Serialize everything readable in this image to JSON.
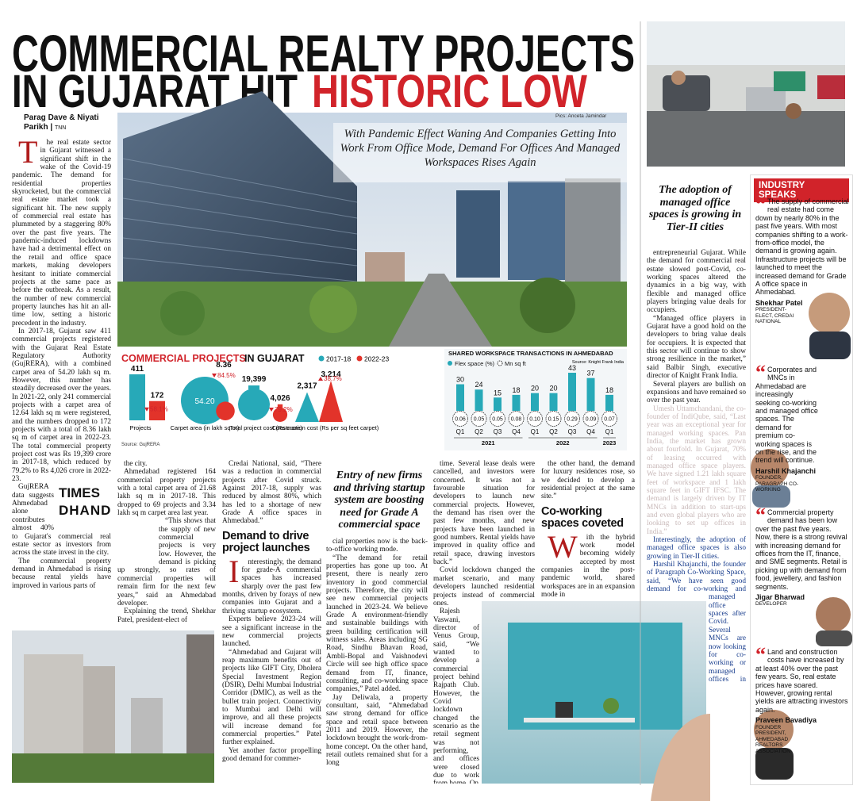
{
  "headline": {
    "line1": "COMMERCIAL REALTY PROJECTS",
    "line2": "IN GUJARAT HIT",
    "highlight": "HISTORIC LOW"
  },
  "byline": {
    "authors": "Parag Dave & Niyati Parikh",
    "agency": "TNN"
  },
  "photo_credit": "Pics: Anceta Jamindar",
  "photo_caption": "With Pandemic Effect Waning And Companies Getting Into Work From Office Mode, Demand For Offices And Managed Workspaces Rises Again",
  "logo": {
    "top": "TIMES",
    "bottom": "DHANDHO"
  },
  "pull_quotes": [
    "Entry of new firms and thriving startup system are boosting need for Grade A commercial space",
    "The adoption of managed office spaces is growing in Tier-II cities"
  ],
  "columns": [
    [
      {
        "p": "The real estate sector in Gujarat witnessed a significant shift in the wake of the Covid-19 pandemic. The demand for residential properties skyrocketed, but the commercial real estate market took a significant hit. The new supply of commercial real estate has plummeted by a staggering 80% over the past five years. The pandemic-induced lockdowns have had a detrimental effect on the retail and office space markets, making developers hesitant to initiate commercial projects at the same pace as before the outbreak. As a result, the number of new commercial property launches has hit an all-time low, setting a historic precedent in the industry."
      },
      {
        "p": "In 2017-18, Gujarat saw 411 commercial projects registered with the Gujarat Real Estate Regulatory Authority (GujRERA), with a combined carpet area of 54.20 lakh sq m. However, this number has steadily decreased over the years. In 2021-22, only 241 commercial projects with a carpet area of 12.64 lakh sq m were registered, and the numbers dropped to 172 projects with a total of 8.36 lakh sq m of carpet area in 2022-23. The total commercial property project cost was Rs 19,399 crore in 2017-18, which reduced by 79.2% to Rs 4,026 crore in 2022-23."
      },
      {
        "p": "GujRERA data suggests Ahmedabad alone contributes almost 40% to Gujarat's commercial real estate sector as investors from across the state invest in the city."
      },
      {
        "p": "The commercial property demand in Ahmedabad is rising because rental yields have improved in various parts of"
      }
    ],
    [
      {
        "p": "the city."
      },
      {
        "p": "Ahmedabad registered 164 commercial property projects with a total carpet area of 21.68 lakh sq m in 2017-18. This dropped to 69 projects and 3.34 lakh sq m carpet area last year."
      },
      {
        "p": "“This shows that the supply of new commercial projects is very low. However, the demand is picking up strongly, so rates of commercial properties will remain firm for the next few years,” said an Ahmedabad developer."
      },
      {
        "p": "Explaining the trend, Shekhar Patel, president-elect of"
      }
    ],
    [
      {
        "p": "Credai National, said, “There was a reduction in commercial projects after Covid struck. Against 2017-18, supply was reduced by almost 80%, which has led to a shortage of new Grade A office spaces in Ahmedabad.”"
      },
      {
        "h": "Demand to drive project launches"
      },
      {
        "p": "Interestingly, the demand for grade-A commercial spaces has increased sharply over the past few months, driven by forays of new companies into Gujarat and a thriving startup ecosystem."
      },
      {
        "p": "Experts believe 2023-24 will see a significant increase in the new commercial projects launched."
      },
      {
        "p": "“Ahmedabad and Gujarat will reap maximum benefits out of projects like GIFT City, Dholera Special Investment Region (DSIR), Delhi Mumbai Industrial Corridor (DMIC), as well as the bullet train project. Connectivity to Mumbai and Delhi will improve, and all these projects will increase demand for commercial properties.” Patel further explained."
      },
      {
        "p": "Yet another factor propelling good demand for commer-"
      }
    ],
    [
      {
        "p": "cial properties now is the back-to-office working mode."
      },
      {
        "p": "“The demand for retail properties has gone up too. At present, there is nearly zero inventory in good commercial projects. Therefore, the city will see new commercial projects launched in 2023-24. We believe Grade A environment-friendly and sustainable buildings with green building certification will witness sales. Areas including SG Road, Sindhu Bhavan Road, Ambli-Bopal and Vaishnodevi Circle will see high office space demand from IT, finance, consulting, and co-working space companies,” Patel added."
      },
      {
        "p": "Jay Deliwala, a property consultant, said, “Ahmedabad saw strong demand for office space and retail space between 2011 and 2019. However, the lockdown brought the work-from-home concept. On the other hand, retail outlets remained shut for a long"
      }
    ],
    [
      {
        "p": "time. Several lease deals were cancelled, and investors were concerned. It was not a favourable situation for developers to launch new commercial projects. However, the demand has risen over the past few months, and new projects have been launched in good numbers. Rental yields have improved in quality office and retail space, drawing investors back.”"
      },
      {
        "p": "Covid lockdown changed the market scenario, and many developers launched residential projects instead of commercial ones."
      },
      {
        "p": "Rajesh Vaswani, director of Venus Group, said, “We wanted to develop a commercial project behind Rajpath Club. However, the Covid lockdown changed the scenario as the retail segment was not performing, and offices were closed due to work from home. On"
      }
    ],
    [
      {
        "p": "the other hand, the demand for luxury residences rose, so we decided to develop a residential project at the same site.”"
      },
      {
        "h": "Co-working spaces coveted"
      },
      {
        "p": "With the hybrid work model becoming widely accepted by most companies in the post-pandemic world, shared workspaces are in an expansion mode in"
      }
    ],
    [
      {
        "p": "entrepreneurial Gujarat. While the demand for commercial real estate slowed post-Covid, co-working spaces altered the dynamics in a big way, with flexible and managed office players bringing value deals for occupiers."
      },
      {
        "p": "“Managed office players in Gujarat have a good hold on the developers to bring value deals for occupiers. It is expected that this sector will continue to show strong resilience in the market,” said Balbir Singh, executive director of Knight Frank India."
      },
      {
        "p": "Several players are bullish on expansions and have remained so over the past year."
      },
      {
        "p": "Umesh Uttamchandani, the co-founder of IndiQube, said, “Last year was an exceptional year for managed working spaces. Pan India, the market has grown about fourfold. In Gujarat, 70% of leasing occurred with managed office space players. We have signed 1.21 lakh square feet of workspace and 1 lakh square feet in GIFT IFSC. The demand is largely driven by IT MNCs in addition to start-ups and even global players who are looking to set up offices in India.”",
        "faded": true
      },
      {
        "p": "Interestingly, the adoption of managed office spaces is also growing in Tier-II cities.",
        "accent": true
      },
      {
        "p": "Harshil Khajanchi, the founder of Paragraph Co-Working Space, said, “We have seen good demand for co-working and managed office spaces after Covid. Several MNCs are now looking for co-working or managed offices in Ahmedabad. We currently have a total of 60,000 sq feet of co-working and managed office space and have recently added another 20,000 sq feet in Nehrunagar.”",
        "accent": true
      }
    ]
  ],
  "projects_graphic": {
    "title": "COMMERCIAL PROJECTS",
    "title_suffix": "IN GUJARAT",
    "legend": [
      {
        "name": "2017-18",
        "color": "#27a9b8"
      },
      {
        "name": "2022-23",
        "color": "#e2332a"
      }
    ],
    "items": [
      {
        "label": "Projects",
        "values": [
          411,
          172
        ],
        "change": "58.1%",
        "direction": "down"
      },
      {
        "label": "Carpet area (in lakh sq m)",
        "values": [
          {
            "value": 54.2,
            "label": "54.20"
          },
          8.36
        ],
        "change": "84.5%",
        "direction": "down"
      },
      {
        "label": "Total project cost (Rs crore)",
        "values": [
          {
            "value": 19399,
            "label": "19,399"
          },
          {
            "value": 4026,
            "label": "4,026"
          }
        ],
        "change": "79.2%",
        "direction": "down"
      },
      {
        "label": "Construction cost (Rs per sq feet carpet)",
        "values": [
          {
            "value": 2317,
            "label": "2,317"
          },
          {
            "value": 3214,
            "label": "3,214"
          }
        ],
        "change": "38.7%",
        "direction": "up"
      }
    ],
    "source": "Source: GujRERA"
  },
  "workspace_graphic": {
    "title": "SHARED WORKSPACE TRANSACTIONS IN AHMEDABAD",
    "series": [
      {
        "name": "Flex space (%)",
        "color": "#27a9b8",
        "values": [
          30,
          24,
          15,
          18,
          20,
          20,
          43,
          37,
          18
        ]
      },
      {
        "name": "Mn sq ft",
        "values": [
          0.06,
          0.05,
          0.05,
          0.08,
          {
            "value": 0.1,
            "label": "0.10"
          },
          0.15,
          0.29,
          0.09,
          0.07
        ]
      }
    ],
    "categories": [
      "Q1",
      "Q2",
      "Q3",
      "Q4",
      "Q1",
      "Q2",
      "Q3",
      "Q4",
      "Q1"
    ],
    "groups": [
      "2021",
      "2022",
      "2023"
    ],
    "source": "Source: Knight Frank India"
  },
  "industry_speaks": {
    "title": "INDUSTRY SPEAKS",
    "quotes": [
      {
        "text": "The supply of commercial real estate had come down by nearly 80% in the past five years. With most companies shifting to a work-from-office model, the demand is growing again. Infrastructure projects will be launched to meet the increased demand for Grade A office space in Ahmedabad.",
        "name": "Shekhar Patel",
        "role": "PRESIDENT-ELECT, CREDAI NATIONAL"
      },
      {
        "text": "Corporates and MNCs in Ahmedabad are increasingly seeking co-working and managed office spaces. The demand for premium co-working spaces is on the rise, and the trend will continue.",
        "name": "Harshil Khajanchi",
        "role": "FOUNDER, PARAGRAPH CO-WORKING"
      },
      {
        "text": "Commercial property demand has been low over the past five years. Now, there is a strong revival with increasing demand for offices from the IT, finance, and SME segments. Retail is picking up with demand from food, jewellery, and fashion segments.",
        "name": "Jigar Bharwad",
        "role": "DEVELOPER"
      },
      {
        "text": "Land and construction costs have increased by at least 40% over the past few years. So, real estate prices have soared. However, growing rental yields are attracting investors again.",
        "name": "Praveen Bavadiya",
        "role": "FOUNDER PRESIDENT, AHMEDABAD REALTORS ASSOCIATION"
      }
    ]
  }
}
